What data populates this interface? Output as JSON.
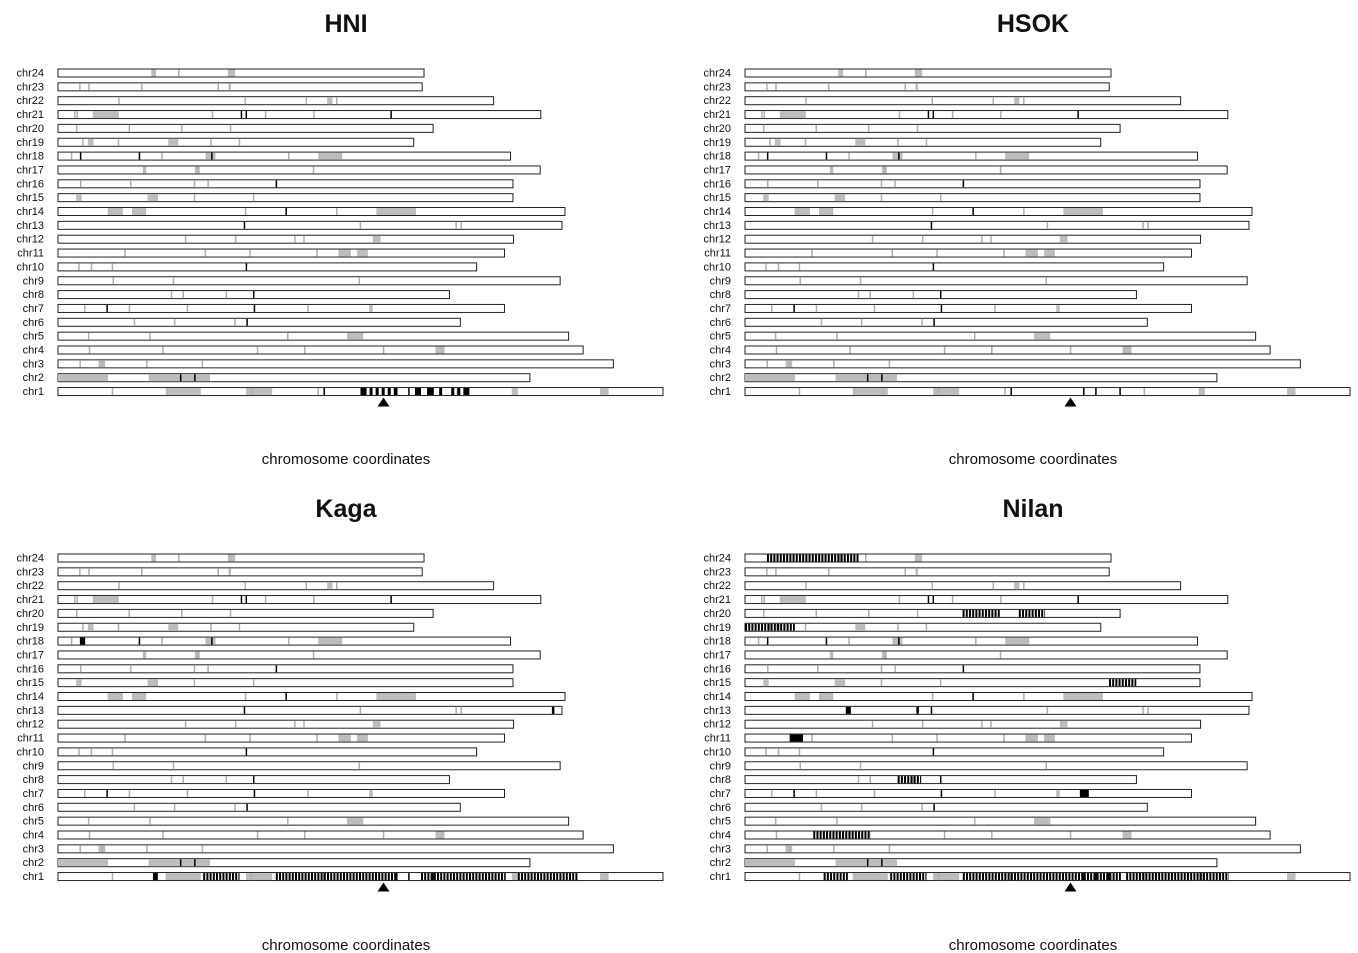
{
  "chart_data": [
    {
      "type": "chromosome-ideogram",
      "title": "HNI",
      "xlabel": "chromosome coordinates",
      "chromosomes": [
        "chr24",
        "chr23",
        "chr22",
        "chr21",
        "chr20",
        "chr19",
        "chr18",
        "chr17",
        "chr16",
        "chr15",
        "chr14",
        "chr13",
        "chr12",
        "chr11",
        "chr10",
        "chr9",
        "chr8",
        "chr7",
        "chr6",
        "chr5",
        "chr4",
        "chr3",
        "chr2",
        "chr1"
      ],
      "lengths": [
        0.605,
        0.602,
        0.72,
        0.798,
        0.62,
        0.588,
        0.748,
        0.797,
        0.752,
        0.752,
        0.838,
        0.833,
        0.753,
        0.738,
        0.692,
        0.83,
        0.647,
        0.738,
        0.665,
        0.844,
        0.868,
        0.918,
        0.78,
        1.0
      ],
      "marker": {
        "chromosome": "chr1",
        "position": 0.538
      }
    },
    {
      "type": "chromosome-ideogram",
      "title": "HSOK",
      "xlabel": "chromosome coordinates",
      "chromosomes": [
        "chr24",
        "chr23",
        "chr22",
        "chr21",
        "chr20",
        "chr19",
        "chr18",
        "chr17",
        "chr16",
        "chr15",
        "chr14",
        "chr13",
        "chr12",
        "chr11",
        "chr10",
        "chr9",
        "chr8",
        "chr7",
        "chr6",
        "chr5",
        "chr4",
        "chr3",
        "chr2",
        "chr1"
      ],
      "lengths": [
        0.605,
        0.602,
        0.72,
        0.798,
        0.62,
        0.588,
        0.748,
        0.797,
        0.752,
        0.752,
        0.838,
        0.833,
        0.753,
        0.738,
        0.692,
        0.83,
        0.647,
        0.738,
        0.665,
        0.844,
        0.868,
        0.918,
        0.78,
        1.0
      ],
      "marker": {
        "chromosome": "chr1",
        "position": 0.538
      }
    },
    {
      "type": "chromosome-ideogram",
      "title": "Kaga",
      "xlabel": "chromosome coordinates",
      "chromosomes": [
        "chr24",
        "chr23",
        "chr22",
        "chr21",
        "chr20",
        "chr19",
        "chr18",
        "chr17",
        "chr16",
        "chr15",
        "chr14",
        "chr13",
        "chr12",
        "chr11",
        "chr10",
        "chr9",
        "chr8",
        "chr7",
        "chr6",
        "chr5",
        "chr4",
        "chr3",
        "chr2",
        "chr1"
      ],
      "lengths": [
        0.605,
        0.602,
        0.72,
        0.798,
        0.62,
        0.588,
        0.748,
        0.797,
        0.752,
        0.752,
        0.838,
        0.833,
        0.753,
        0.738,
        0.692,
        0.83,
        0.647,
        0.738,
        0.665,
        0.844,
        0.868,
        0.918,
        0.78,
        1.0
      ],
      "marker": {
        "chromosome": "chr1",
        "position": 0.538
      }
    },
    {
      "type": "chromosome-ideogram",
      "title": "Nilan",
      "xlabel": "chromosome coordinates",
      "chromosomes": [
        "chr24",
        "chr23",
        "chr22",
        "chr21",
        "chr20",
        "chr19",
        "chr18",
        "chr17",
        "chr16",
        "chr15",
        "chr14",
        "chr13",
        "chr12",
        "chr11",
        "chr10",
        "chr9",
        "chr8",
        "chr7",
        "chr6",
        "chr5",
        "chr4",
        "chr3",
        "chr2",
        "chr1"
      ],
      "lengths": [
        0.605,
        0.602,
        0.72,
        0.798,
        0.62,
        0.588,
        0.748,
        0.797,
        0.752,
        0.752,
        0.838,
        0.833,
        0.753,
        0.738,
        0.692,
        0.83,
        0.647,
        0.738,
        0.665,
        0.844,
        0.868,
        0.918,
        0.78,
        1.0
      ],
      "marker": {
        "chromosome": "chr1",
        "position": 0.538
      }
    }
  ],
  "shared_tracks": {
    "gray": {
      "chr24": [
        [
          0.255,
          0.268
        ],
        [
          0.464,
          0.484
        ]
      ],
      "chr23": [
        [
          0.468,
          0.475
        ]
      ],
      "chr22": [
        [
          0.618,
          0.63
        ]
      ],
      "chr21": [
        [
          0.072,
          0.126
        ]
      ],
      "chr19": [
        [
          0.084,
          0.1
        ],
        [
          0.31,
          0.338
        ]
      ],
      "chr18": [
        [
          0.326,
          0.348
        ],
        [
          0.575,
          0.628
        ]
      ],
      "chr17": [
        [
          0.176,
          0.183
        ],
        [
          0.284,
          0.294
        ]
      ],
      "chr15": [
        [
          0.04,
          0.052
        ],
        [
          0.197,
          0.22
        ]
      ],
      "chr14": [
        [
          0.098,
          0.128
        ],
        [
          0.146,
          0.174
        ],
        [
          0.628,
          0.706
        ]
      ],
      "chr12": [
        [
          0.691,
          0.708
        ]
      ],
      "chr11": [
        [
          0.628,
          0.656
        ],
        [
          0.67,
          0.694
        ]
      ],
      "chr7": [
        [
          0.697,
          0.705
        ]
      ],
      "chr5": [
        [
          0.566,
          0.598
        ]
      ],
      "chr4": [
        [
          0.719,
          0.736
        ]
      ],
      "chr3": [
        [
          0.073,
          0.085
        ]
      ],
      "chr2": [
        [
          0.0,
          0.106
        ],
        [
          0.192,
          0.322
        ]
      ],
      "chr1": [
        [
          0.178,
          0.236
        ],
        [
          0.311,
          0.354
        ],
        [
          0.896,
          0.91
        ],
        [
          0.75,
          0.76
        ]
      ]
    },
    "grayTicks": {
      "chr24": [
        0.33
      ],
      "chr23": [
        0.06,
        0.085,
        0.23,
        0.44
      ],
      "chr22": [
        0.14,
        0.43,
        0.57,
        0.64
      ],
      "chr21": [
        0.035,
        0.04,
        0.32,
        0.43,
        0.53
      ],
      "chr20": [
        0.05,
        0.19,
        0.33,
        0.46
      ],
      "chr19": [
        0.07,
        0.17,
        0.43,
        0.51
      ],
      "chr18": [
        0.03,
        0.23,
        0.51
      ],
      "chr17": [
        0.29,
        0.53
      ],
      "chr16": [
        0.05,
        0.16,
        0.3,
        0.33
      ],
      "chr15": [
        0.3,
        0.43
      ],
      "chr14": [
        0.37,
        0.55
      ],
      "chr13": [
        0.6,
        0.79,
        0.8
      ],
      "chr12": [
        0.28,
        0.39,
        0.52,
        0.54
      ],
      "chr11": [
        0.15,
        0.33,
        0.43,
        0.58
      ],
      "chr10": [
        0.05,
        0.08,
        0.13
      ],
      "chr9": [
        0.11,
        0.23,
        0.6
      ],
      "chr8": [
        0.29,
        0.32,
        0.43
      ],
      "chr7": [
        0.06,
        0.16,
        0.29,
        0.56
      ],
      "chr6": [
        0.19,
        0.29,
        0.44
      ],
      "chr5": [
        0.06,
        0.18,
        0.45
      ],
      "chr4": [
        0.06,
        0.2,
        0.38,
        0.47,
        0.62
      ],
      "chr3": [
        0.04,
        0.08,
        0.16,
        0.26
      ],
      "chr1": [
        0.09,
        0.32,
        0.43,
        0.66
      ]
    },
    "blackTicks": {
      "chr21": [
        0.38,
        0.39,
        0.69
      ],
      "chr18": [
        0.05,
        0.18,
        0.34
      ],
      "chr16": [
        0.48
      ],
      "chr14": [
        0.45
      ],
      "chr13": [
        0.37
      ],
      "chr10": [
        0.45
      ],
      "chr8": [
        0.5
      ],
      "chr7": [
        0.11,
        0.44
      ],
      "chr6": [
        0.47
      ],
      "chr2": [
        0.26,
        0.29
      ],
      "chr1": [
        0.44,
        0.56,
        0.58,
        0.62
      ]
    }
  }
}
